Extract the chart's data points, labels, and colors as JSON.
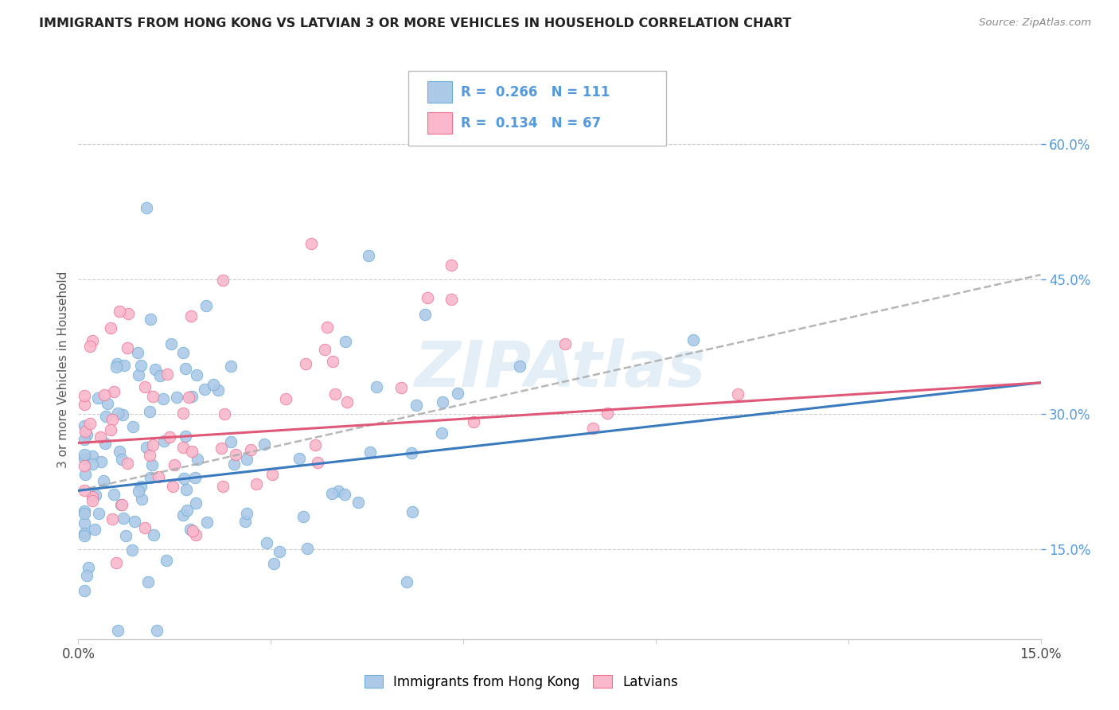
{
  "title": "IMMIGRANTS FROM HONG KONG VS LATVIAN 3 OR MORE VEHICLES IN HOUSEHOLD CORRELATION CHART",
  "source": "Source: ZipAtlas.com",
  "ylabel": "3 or more Vehicles in Household",
  "xmin": 0.0,
  "xmax": 0.15,
  "ymin": 0.05,
  "ymax": 0.65,
  "y_ticks_right": [
    0.15,
    0.3,
    0.45,
    0.6
  ],
  "y_tick_labels_right": [
    "15.0%",
    "30.0%",
    "45.0%",
    "60.0%"
  ],
  "series1_fill_color": "#adc9e8",
  "series1_edge_color": "#6aaed6",
  "series2_fill_color": "#f9b8cb",
  "series2_edge_color": "#f07090",
  "trend1_color": "#3a7abf",
  "trend1_dash_color": "#aaaaaa",
  "trend2_color": "#e05878",
  "R1": 0.266,
  "N1": 111,
  "R2": 0.134,
  "N2": 67,
  "legend_label1": "Immigrants from Hong Kong",
  "legend_label2": "Latvians",
  "watermark": "ZIPAtlas",
  "bg_color": "#ffffff",
  "grid_color": "#cccccc",
  "title_color": "#222222",
  "source_color": "#888888",
  "right_axis_color": "#5599dd",
  "seed1": 12,
  "seed2": 99
}
